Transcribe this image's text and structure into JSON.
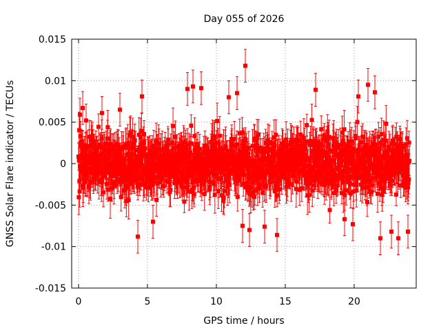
{
  "chart_data": {
    "type": "scatter",
    "title": "Day 055 of 2026",
    "xlabel": "GPS time / hours",
    "ylabel": "GNSS Solar Flare indicator / TECUs",
    "xlim": [
      -0.5,
      24.5
    ],
    "ylim": [
      -0.015,
      0.015
    ],
    "x_ticks": [
      0,
      5,
      10,
      15,
      20
    ],
    "x_tick_labels": [
      "0",
      "5",
      "10",
      "15",
      "20"
    ],
    "y_ticks": [
      -0.015,
      -0.01,
      -0.005,
      0,
      0.005,
      0.01,
      0.015
    ],
    "y_tick_labels": [
      "-0.015",
      "-0.01",
      "-0.005",
      "0",
      "0.005",
      "0.01",
      "0.015"
    ],
    "grid": true,
    "series_color": "#ff0000",
    "series": [
      {
        "x_start": 0,
        "x_end": 24,
        "n_points": 1440,
        "y_spread": 0.0032,
        "error_bar": 0.0018,
        "notable_points": [
          {
            "x": 0.1,
            "y": 0.0059
          },
          {
            "x": 0.3,
            "y": 0.0067
          },
          {
            "x": 0.55,
            "y": 0.0052
          },
          {
            "x": 1.7,
            "y": 0.0061
          },
          {
            "x": 3.0,
            "y": 0.0065
          },
          {
            "x": 4.3,
            "y": -0.0088
          },
          {
            "x": 4.6,
            "y": 0.0081
          },
          {
            "x": 5.4,
            "y": -0.007
          },
          {
            "x": 7.9,
            "y": 0.009
          },
          {
            "x": 8.3,
            "y": 0.0093
          },
          {
            "x": 8.9,
            "y": 0.0091
          },
          {
            "x": 10.9,
            "y": 0.008
          },
          {
            "x": 11.5,
            "y": 0.0085
          },
          {
            "x": 11.9,
            "y": -0.0075
          },
          {
            "x": 12.1,
            "y": 0.0118
          },
          {
            "x": 12.4,
            "y": -0.008
          },
          {
            "x": 13.5,
            "y": -0.0076
          },
          {
            "x": 14.4,
            "y": -0.0086
          },
          {
            "x": 17.2,
            "y": 0.0089
          },
          {
            "x": 19.3,
            "y": -0.0067
          },
          {
            "x": 19.9,
            "y": -0.0073
          },
          {
            "x": 20.3,
            "y": 0.0081
          },
          {
            "x": 21.0,
            "y": 0.0095
          },
          {
            "x": 21.5,
            "y": 0.0086
          },
          {
            "x": 21.9,
            "y": -0.009
          },
          {
            "x": 22.7,
            "y": -0.0082
          },
          {
            "x": 23.2,
            "y": -0.009
          },
          {
            "x": 23.9,
            "y": -0.0082
          }
        ]
      }
    ]
  }
}
